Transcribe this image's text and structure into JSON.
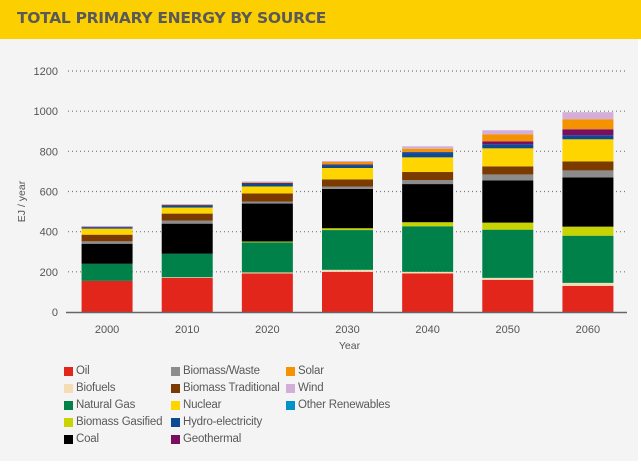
{
  "header": {
    "title": "TOTAL PRIMARY ENERGY BY SOURCE"
  },
  "chart_data": {
    "type": "bar",
    "stacked": true,
    "title": "TOTAL PRIMARY ENERGY BY SOURCE",
    "xlabel": "Year",
    "ylabel": "EJ / year",
    "ylim": [
      0,
      1200
    ],
    "yticks": [
      0,
      200,
      400,
      600,
      800,
      1000,
      1200
    ],
    "grid": "horizontal-dotted",
    "legend_position": "bottom",
    "categories": [
      "2000",
      "2010",
      "2020",
      "2030",
      "2040",
      "2050",
      "2060"
    ],
    "series": [
      {
        "name": "Oil",
        "color": "#e3261b",
        "values": [
          155,
          170,
          192,
          200,
          192,
          160,
          130
        ]
      },
      {
        "name": "Biofuels",
        "color": "#f5dcb4",
        "values": [
          0,
          3,
          5,
          10,
          8,
          10,
          15
        ]
      },
      {
        "name": "Natural Gas",
        "color": "#00814a",
        "values": [
          85,
          117,
          150,
          198,
          227,
          240,
          235
        ]
      },
      {
        "name": "Biomass Gasified",
        "color": "#c8d400",
        "values": [
          0,
          0,
          4,
          9,
          20,
          35,
          45
        ]
      },
      {
        "name": "Coal",
        "color": "#000000",
        "values": [
          100,
          150,
          189,
          196,
          190,
          210,
          245
        ]
      },
      {
        "name": "Biomass/Waste",
        "color": "#8c8c8c",
        "values": [
          12,
          15,
          10,
          12,
          20,
          30,
          35
        ]
      },
      {
        "name": "Biomass Traditional",
        "color": "#7a3a00",
        "values": [
          33,
          35,
          40,
          35,
          40,
          40,
          45
        ]
      },
      {
        "name": "Nuclear",
        "color": "#ffd500",
        "values": [
          30,
          30,
          35,
          57,
          73,
          90,
          110
        ]
      },
      {
        "name": "Hydro-electricity",
        "color": "#0a4b94",
        "values": [
          7,
          12,
          17,
          16,
          22,
          20,
          20
        ]
      },
      {
        "name": "Other Renewables",
        "color": "#0093c8",
        "values": [
          0,
          0,
          0,
          1,
          2,
          0,
          0
        ]
      },
      {
        "name": "Geothermal",
        "color": "#7a0f62",
        "values": [
          3,
          2,
          1,
          1,
          3,
          15,
          30
        ]
      },
      {
        "name": "Solar",
        "color": "#f59200",
        "values": [
          0,
          1,
          2,
          12,
          16,
          35,
          50
        ]
      },
      {
        "name": "Wind",
        "color": "#d3aed8",
        "values": [
          0,
          2,
          5,
          5,
          12,
          20,
          35
        ]
      }
    ]
  },
  "legend": [
    {
      "label": "Oil",
      "color": "#e3261b",
      "col": 0,
      "row": 0
    },
    {
      "label": "Biofuels",
      "color": "#f5dcb4",
      "col": 0,
      "row": 1
    },
    {
      "label": "Natural Gas",
      "color": "#00814a",
      "col": 0,
      "row": 2
    },
    {
      "label": "Biomass Gasified",
      "color": "#c8d400",
      "col": 0,
      "row": 3
    },
    {
      "label": "Coal",
      "color": "#000000",
      "col": 0,
      "row": 4
    },
    {
      "label": "Biomass/Waste",
      "color": "#8c8c8c",
      "col": 1,
      "row": 0
    },
    {
      "label": "Biomass Traditional",
      "color": "#7a3a00",
      "col": 1,
      "row": 1
    },
    {
      "label": "Nuclear",
      "color": "#ffd500",
      "col": 1,
      "row": 2
    },
    {
      "label": "Hydro-electricity",
      "color": "#0a4b94",
      "col": 1,
      "row": 3
    },
    {
      "label": "Geothermal",
      "color": "#7a0f62",
      "col": 1,
      "row": 4
    },
    {
      "label": "Solar",
      "color": "#f59200",
      "col": 2,
      "row": 0
    },
    {
      "label": "Wind",
      "color": "#d3aed8",
      "col": 2,
      "row": 1
    },
    {
      "label": "Other Renewables",
      "color": "#0093c8",
      "col": 2,
      "row": 2
    }
  ]
}
